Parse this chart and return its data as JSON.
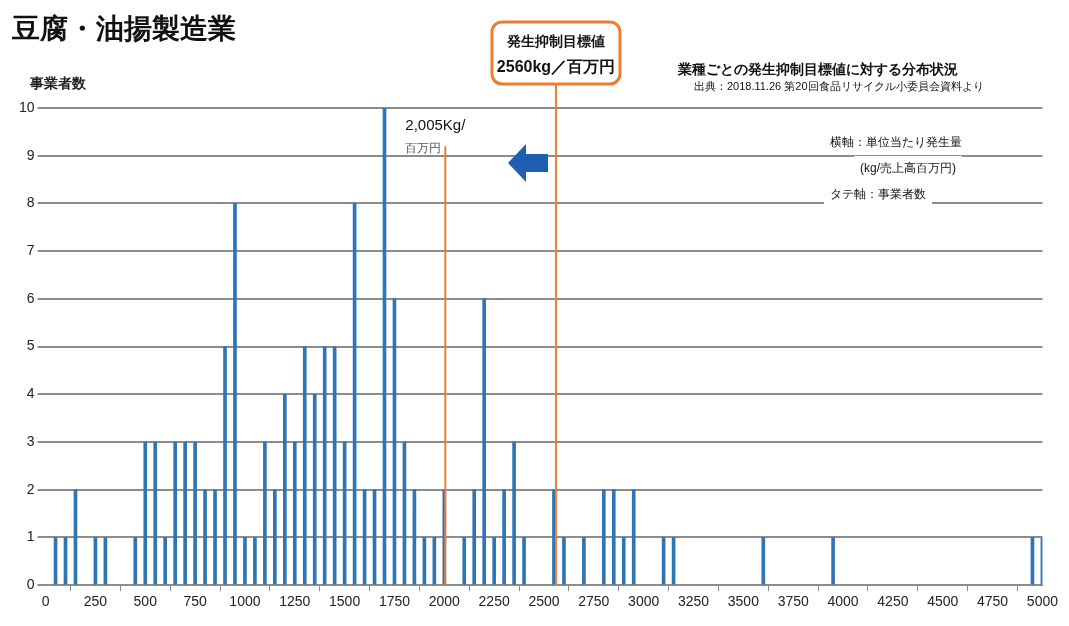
{
  "chart_data": {
    "type": "bar",
    "title": "豆腐・油揚製造業",
    "ylabel": "事業者数",
    "x": [
      50,
      100,
      150,
      250,
      300,
      450,
      500,
      550,
      600,
      650,
      700,
      750,
      800,
      850,
      900,
      950,
      1000,
      1050,
      1100,
      1150,
      1200,
      1250,
      1300,
      1350,
      1400,
      1450,
      1500,
      1550,
      1600,
      1650,
      1700,
      1750,
      1800,
      1850,
      1900,
      1950,
      2000,
      2100,
      2150,
      2200,
      2250,
      2300,
      2350,
      2400,
      2550,
      2600,
      2700,
      2800,
      2850,
      2900,
      2950,
      3100,
      3150,
      3600,
      3950,
      4950,
      5000
    ],
    "values": [
      1,
      1,
      2,
      1,
      1,
      1,
      3,
      3,
      1,
      3,
      3,
      3,
      2,
      2,
      5,
      8,
      1,
      1,
      3,
      2,
      4,
      3,
      5,
      4,
      5,
      5,
      3,
      8,
      2,
      2,
      10,
      6,
      3,
      2,
      1,
      1,
      2,
      1,
      2,
      6,
      1,
      2,
      3,
      1,
      2,
      1,
      1,
      2,
      2,
      1,
      2,
      1,
      1,
      1,
      1,
      1,
      1
    ],
    "color": "#2e75b6",
    "xlim": [
      0,
      5000
    ],
    "xticks": [
      0,
      250,
      500,
      750,
      1000,
      1250,
      1500,
      1750,
      2000,
      2250,
      2500,
      2750,
      3000,
      3250,
      3500,
      3750,
      4000,
      4250,
      4500,
      4750,
      5000
    ],
    "ylim": [
      0,
      10
    ],
    "yticks": [
      0,
      1,
      2,
      3,
      4,
      5,
      6,
      7,
      8,
      9,
      10
    ],
    "grid": "y",
    "ref_lines": [
      {
        "axis": "x",
        "value": 2005,
        "label": "2,005Kg/\n百万円",
        "color": "#ed7d31"
      },
      {
        "axis": "x",
        "value": 2560,
        "label": "発生抑制目標値\n2560kg／百万円",
        "color": "#ed7d31"
      }
    ],
    "annotations": [
      "業種ごとの発生抑制目標値に対する分布状況",
      "出典：2018.11.26 第20回食品リサイクル小委員会資料より",
      "横軸：単位当たり発生量",
      "(kg/売上高百万円)",
      "タテ軸：事業者数"
    ]
  }
}
